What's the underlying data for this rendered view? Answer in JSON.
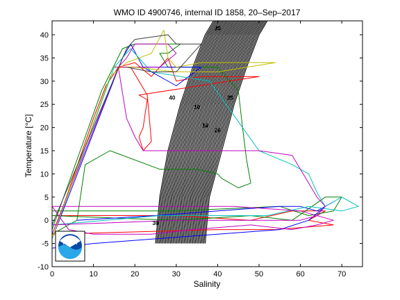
{
  "chart_data": {
    "type": "line",
    "title": "WMO ID 4900746, internal ID 1858, 20–Sep–2017",
    "xlabel": "Salinity",
    "ylabel": "Temperature [°C]",
    "xlim": [
      0,
      75
    ],
    "ylim": [
      -10,
      43
    ],
    "xticks": [
      "0",
      "10",
      "20",
      "30",
      "40",
      "50",
      "60",
      "70"
    ],
    "yticks": [
      "-10",
      "-5",
      "0",
      "5",
      "10",
      "15",
      "20",
      "25",
      "30",
      "35",
      "40"
    ],
    "grid": false,
    "density_band": {
      "color": "#000000",
      "left_edge": [
        [
          25,
          -5
        ],
        [
          26,
          5
        ],
        [
          28,
          15
        ],
        [
          31,
          25
        ],
        [
          34,
          33
        ],
        [
          37,
          40
        ],
        [
          39,
          43
        ]
      ],
      "right_edge": [
        [
          37,
          -5
        ],
        [
          38,
          5
        ],
        [
          41,
          15
        ],
        [
          44,
          25
        ],
        [
          47,
          33
        ],
        [
          50,
          40
        ],
        [
          52,
          43
        ]
      ],
      "contour_count": 40
    },
    "isopycnal_labels": [
      {
        "text": "20",
        "s": 40,
        "t": 41
      },
      {
        "text": "28",
        "s": 43,
        "t": 26
      },
      {
        "text": "10",
        "s": 35,
        "t": 24
      },
      {
        "text": "18",
        "s": 37,
        "t": 20
      },
      {
        "text": "26",
        "s": 40,
        "t": 19
      },
      {
        "text": "40",
        "s": 29,
        "t": 26
      },
      {
        "text": "30",
        "s": 25,
        "t": -1
      }
    ],
    "series": [
      {
        "color": "#ff0000",
        "points": [
          [
            0,
            -4
          ],
          [
            10,
            22
          ],
          [
            13,
            29
          ],
          [
            16,
            33
          ],
          [
            20,
            34
          ],
          [
            24,
            31
          ],
          [
            28,
            35
          ],
          [
            30,
            30
          ],
          [
            36,
            31
          ],
          [
            50,
            31
          ],
          [
            21,
            27
          ],
          [
            23,
            26
          ],
          [
            22,
            20
          ],
          [
            21,
            18
          ],
          [
            22,
            15
          ],
          [
            24,
            17
          ],
          [
            23,
            27
          ],
          [
            19,
            33
          ],
          [
            15,
            33
          ]
        ]
      },
      {
        "color": "#ff0000",
        "points": [
          [
            0,
            1
          ],
          [
            30,
            1
          ],
          [
            48,
            0
          ],
          [
            58,
            2
          ],
          [
            66,
            2
          ],
          [
            62,
            0
          ],
          [
            68,
            -1
          ],
          [
            54,
            -2
          ],
          [
            40,
            -2
          ],
          [
            0,
            -3
          ]
        ]
      },
      {
        "color": "#008000",
        "points": [
          [
            0,
            -2
          ],
          [
            12,
            28
          ],
          [
            17,
            37
          ],
          [
            20,
            38
          ],
          [
            31,
            38
          ],
          [
            28,
            36
          ],
          [
            26,
            36
          ],
          [
            28,
            33
          ],
          [
            40,
            33
          ],
          [
            45,
            28
          ],
          [
            46,
            20
          ],
          [
            47,
            13
          ],
          [
            48,
            8
          ],
          [
            45,
            7
          ],
          [
            41,
            9
          ],
          [
            40,
            10
          ],
          [
            35,
            11
          ],
          [
            26,
            11
          ],
          [
            14,
            15
          ],
          [
            8,
            12
          ],
          [
            6,
            0
          ],
          [
            0,
            -3
          ]
        ]
      },
      {
        "color": "#008000",
        "points": [
          [
            0,
            2
          ],
          [
            30,
            2
          ],
          [
            55,
            3
          ],
          [
            62,
            1
          ],
          [
            68,
            2
          ],
          [
            70,
            5
          ],
          [
            66,
            5
          ],
          [
            58,
            0
          ],
          [
            48,
            1
          ],
          [
            30,
            0
          ],
          [
            0,
            1
          ]
        ]
      },
      {
        "color": "#0000ff",
        "points": [
          [
            0,
            -4
          ],
          [
            17,
            35
          ],
          [
            19,
            38
          ],
          [
            22,
            33
          ],
          [
            30,
            33
          ],
          [
            36,
            33
          ],
          [
            30,
            29
          ],
          [
            22,
            33
          ],
          [
            19,
            33
          ]
        ]
      },
      {
        "color": "#0000ff",
        "points": [
          [
            0,
            -6
          ],
          [
            10,
            -5
          ],
          [
            25,
            -4
          ],
          [
            40,
            -3
          ],
          [
            55,
            -2
          ],
          [
            62,
            0
          ],
          [
            66,
            3
          ],
          [
            68,
            4
          ],
          [
            64,
            2
          ],
          [
            60,
            3
          ],
          [
            55,
            3
          ],
          [
            40,
            2
          ],
          [
            25,
            1
          ],
          [
            6,
            0
          ]
        ]
      },
      {
        "color": "#00bfbf",
        "points": [
          [
            0,
            -4
          ],
          [
            15,
            33
          ],
          [
            19,
            37
          ],
          [
            24,
            32
          ],
          [
            38,
            30
          ],
          [
            46,
            20
          ],
          [
            50,
            15
          ],
          [
            58,
            12
          ],
          [
            62,
            10
          ],
          [
            64,
            6
          ],
          [
            66,
            3
          ],
          [
            70,
            5
          ],
          [
            74,
            3
          ],
          [
            70,
            2
          ],
          [
            62,
            3
          ],
          [
            52,
            1
          ],
          [
            40,
            1
          ],
          [
            26,
            1
          ],
          [
            0,
            -1
          ]
        ]
      },
      {
        "color": "#bf00bf",
        "points": [
          [
            0,
            -3
          ],
          [
            16,
            33
          ],
          [
            18,
            35
          ],
          [
            20,
            38
          ],
          [
            28,
            38
          ],
          [
            30,
            36
          ],
          [
            26,
            33
          ],
          [
            16,
            33
          ],
          [
            18,
            22
          ],
          [
            20,
            18
          ],
          [
            22,
            15
          ],
          [
            40,
            15
          ],
          [
            50,
            15
          ],
          [
            58,
            14
          ],
          [
            60,
            11
          ],
          [
            64,
            5
          ],
          [
            66,
            3
          ],
          [
            64,
            1
          ],
          [
            60,
            0
          ],
          [
            50,
            0
          ],
          [
            30,
            0
          ],
          [
            0,
            -1
          ]
        ]
      },
      {
        "color": "#bf00bf",
        "points": [
          [
            0,
            3
          ],
          [
            4,
            -2
          ],
          [
            10,
            -3
          ],
          [
            24,
            -3
          ],
          [
            34,
            -2
          ],
          [
            48,
            -1
          ],
          [
            58,
            -2
          ],
          [
            64,
            -1
          ],
          [
            68,
            0
          ],
          [
            60,
            2
          ],
          [
            44,
            3
          ],
          [
            28,
            3
          ],
          [
            10,
            3
          ],
          [
            0,
            3
          ]
        ]
      },
      {
        "color": "#bfbf00",
        "points": [
          [
            0,
            -4
          ],
          [
            14,
            31
          ],
          [
            18,
            34
          ],
          [
            24,
            36
          ],
          [
            27,
            41
          ],
          [
            28,
            35
          ],
          [
            30,
            33
          ],
          [
            36,
            34
          ],
          [
            44,
            34
          ],
          [
            54,
            34
          ],
          [
            40,
            32
          ],
          [
            30,
            32
          ],
          [
            20,
            33
          ],
          [
            18,
            33
          ]
        ]
      },
      {
        "color": "#404040",
        "points": [
          [
            0,
            -1
          ],
          [
            18,
            37
          ],
          [
            20,
            39
          ],
          [
            28,
            40
          ],
          [
            30,
            38
          ],
          [
            36,
            38
          ],
          [
            30,
            32
          ],
          [
            24,
            32
          ],
          [
            18,
            33
          ]
        ]
      }
    ],
    "logo": {
      "text": "NOAA",
      "location": "bottom-left"
    }
  }
}
